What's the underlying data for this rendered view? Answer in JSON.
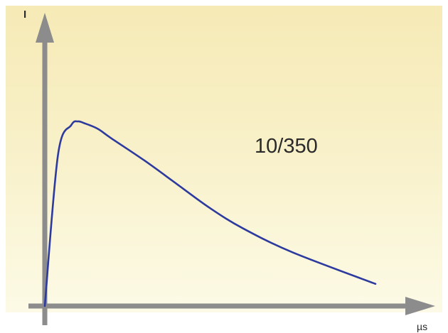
{
  "chart_data": {
    "type": "line",
    "title": "",
    "ylabel": "I",
    "xlabel": "µs",
    "annotation": "10/350",
    "grid": false,
    "legend": "none",
    "axis_ticks": false,
    "series": [
      {
        "color": "#2d3a9e",
        "x": [
          0,
          4,
          8,
          10,
          12,
          16,
          20,
          30,
          40,
          50,
          60,
          75,
          100
        ],
        "y": [
          0,
          0.82,
          0.98,
          1.0,
          0.99,
          0.96,
          0.91,
          0.79,
          0.66,
          0.53,
          0.42,
          0.29,
          0.12
        ]
      }
    ]
  },
  "colors": {
    "axis": "#8c8c8c",
    "curve": "#2d3a9e",
    "background_top": "#f6eab6",
    "background_bottom": "#fcfae6"
  }
}
